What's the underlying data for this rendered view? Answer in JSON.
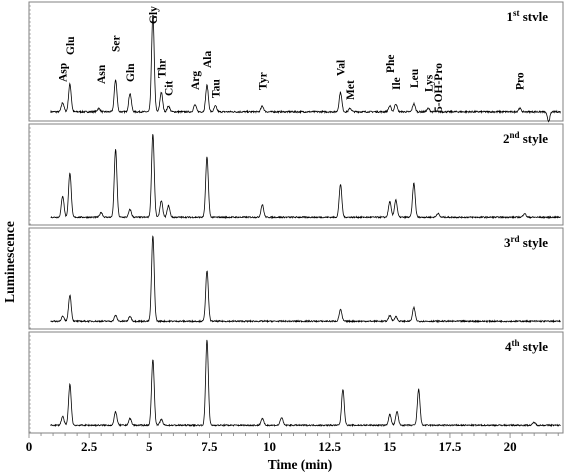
{
  "chart_data": {
    "type": "line",
    "xlabel": "Time (min)",
    "ylabel": "Luminescence",
    "xlim": [
      0,
      22.2
    ],
    "xticks": [
      {
        "value": 0,
        "label": "0"
      },
      {
        "value": 2.5,
        "label": "2.5"
      },
      {
        "value": 5,
        "label": "5"
      },
      {
        "value": 7.5,
        "label": "7.5"
      },
      {
        "value": 10,
        "label": "10"
      },
      {
        "value": 12.5,
        "label": "12.5"
      },
      {
        "value": 15,
        "label": "15"
      },
      {
        "value": 17.5,
        "label": "17.5"
      },
      {
        "value": 20,
        "label": "20"
      }
    ],
    "amino_acid_peaks": [
      {
        "name": "Asp",
        "time": 1.4
      },
      {
        "name": "Glu",
        "time": 1.7
      },
      {
        "name": "Asn",
        "time": 3.0
      },
      {
        "name": "Ser",
        "time": 3.6
      },
      {
        "name": "Gln",
        "time": 4.2
      },
      {
        "name": "Gly",
        "time": 5.15
      },
      {
        "name": "Thr",
        "time": 5.5
      },
      {
        "name": "Cit",
        "time": 5.8
      },
      {
        "name": "Arg",
        "time": 6.9
      },
      {
        "name": "Ala",
        "time": 7.4
      },
      {
        "name": "Tau",
        "time": 7.75
      },
      {
        "name": "Tyr",
        "time": 9.7
      },
      {
        "name": "Val",
        "time": 12.95
      },
      {
        "name": "Met",
        "time": 13.35
      },
      {
        "name": "Phe",
        "time": 15.0
      },
      {
        "name": "Ile",
        "time": 15.25
      },
      {
        "name": "Leu",
        "time": 16.0
      },
      {
        "name": "Lys",
        "time": 16.6
      },
      {
        "name": "5-OH-Pro",
        "time": 17.0
      },
      {
        "name": "Pro",
        "time": 20.4
      }
    ],
    "series": [
      {
        "name_base": "1",
        "name_sup": "st",
        "name_rest": " stvle",
        "ylim": [
          0,
          100
        ],
        "baseline": 8,
        "peaks": [
          {
            "time": 1.4,
            "height": 8
          },
          {
            "time": 1.7,
            "height": 24
          },
          {
            "time": 2.9,
            "height": 3
          },
          {
            "time": 3.6,
            "height": 28
          },
          {
            "time": 4.2,
            "height": 16
          },
          {
            "time": 5.15,
            "height": 84
          },
          {
            "time": 5.5,
            "height": 17
          },
          {
            "time": 5.8,
            "height": 5
          },
          {
            "time": 6.9,
            "height": 6
          },
          {
            "time": 7.4,
            "height": 23
          },
          {
            "time": 7.75,
            "height": 5
          },
          {
            "time": 9.7,
            "height": 5
          },
          {
            "time": 12.95,
            "height": 17
          },
          {
            "time": 13.35,
            "height": 3
          },
          {
            "time": 15.0,
            "height": 5
          },
          {
            "time": 15.25,
            "height": 7
          },
          {
            "time": 16.0,
            "height": 7
          },
          {
            "time": 16.6,
            "height": 3
          },
          {
            "time": 20.4,
            "height": 3
          },
          {
            "time": 21.6,
            "height": -8
          }
        ]
      },
      {
        "name_base": "2",
        "name_sup": "nd",
        "name_rest": " style",
        "ylim": [
          0,
          100
        ],
        "baseline": 8,
        "peaks": [
          {
            "time": 1.4,
            "height": 22
          },
          {
            "time": 1.7,
            "height": 46
          },
          {
            "time": 3.0,
            "height": 5
          },
          {
            "time": 3.6,
            "height": 70
          },
          {
            "time": 4.2,
            "height": 8
          },
          {
            "time": 5.15,
            "height": 86
          },
          {
            "time": 5.5,
            "height": 17
          },
          {
            "time": 5.8,
            "height": 12
          },
          {
            "time": 7.4,
            "height": 62
          },
          {
            "time": 9.7,
            "height": 13
          },
          {
            "time": 12.95,
            "height": 34
          },
          {
            "time": 15.0,
            "height": 16
          },
          {
            "time": 15.25,
            "height": 18
          },
          {
            "time": 16.0,
            "height": 35
          },
          {
            "time": 17.0,
            "height": 4
          },
          {
            "time": 20.6,
            "height": 4
          }
        ]
      },
      {
        "name_base": "3",
        "name_sup": "rd",
        "name_rest": " style",
        "ylim": [
          0,
          100
        ],
        "baseline": 8,
        "peaks": [
          {
            "time": 1.4,
            "height": 5
          },
          {
            "time": 1.7,
            "height": 27
          },
          {
            "time": 3.6,
            "height": 6
          },
          {
            "time": 4.2,
            "height": 5
          },
          {
            "time": 5.15,
            "height": 88
          },
          {
            "time": 7.4,
            "height": 52
          },
          {
            "time": 12.95,
            "height": 12
          },
          {
            "time": 15.0,
            "height": 6
          },
          {
            "time": 15.25,
            "height": 5
          },
          {
            "time": 16.0,
            "height": 14
          }
        ]
      },
      {
        "name_base": "4",
        "name_sup": "th",
        "name_rest": " style",
        "ylim": [
          0,
          100
        ],
        "baseline": 8,
        "peaks": [
          {
            "time": 1.4,
            "height": 9
          },
          {
            "time": 1.7,
            "height": 42
          },
          {
            "time": 3.6,
            "height": 14
          },
          {
            "time": 4.2,
            "height": 7
          },
          {
            "time": 5.15,
            "height": 68
          },
          {
            "time": 5.5,
            "height": 6
          },
          {
            "time": 7.4,
            "height": 88
          },
          {
            "time": 9.7,
            "height": 7
          },
          {
            "time": 10.5,
            "height": 8
          },
          {
            "time": 13.05,
            "height": 37
          },
          {
            "time": 15.0,
            "height": 11
          },
          {
            "time": 15.3,
            "height": 14
          },
          {
            "time": 16.2,
            "height": 37
          },
          {
            "time": 21.0,
            "height": 3
          }
        ]
      }
    ],
    "axis_color": "#808080",
    "trace_color": "#000000"
  }
}
